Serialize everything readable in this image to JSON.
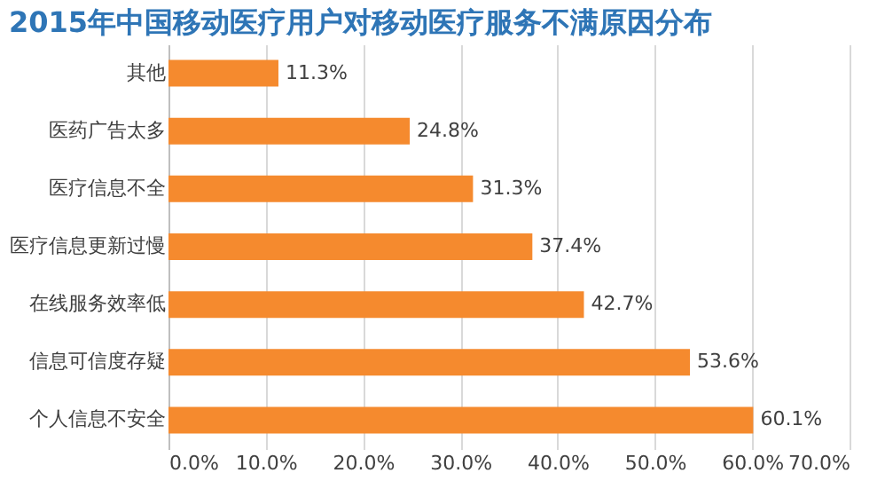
{
  "chart_data": {
    "type": "bar",
    "orientation": "horizontal",
    "title": "2015年中国移动医疗用户对移动医疗服务不满原因分布",
    "categories": [
      "其他",
      "医药广告太多",
      "医疗信息不全",
      "医疗信息更新过慢",
      "在线服务效率低",
      "信息可信度存疑",
      "个人信息不安全"
    ],
    "values": [
      11.3,
      24.8,
      31.3,
      37.4,
      42.7,
      53.6,
      60.1
    ],
    "value_labels": [
      "11.3%",
      "24.8%",
      "31.3%",
      "37.4%",
      "42.7%",
      "53.6%",
      "60.1%"
    ],
    "color": "#f58a2e",
    "xlim": [
      0,
      70
    ],
    "xticks": [
      {
        "value": 0,
        "label": "0.0%"
      },
      {
        "value": 10,
        "label": "10.0%"
      },
      {
        "value": 20,
        "label": "20.0%"
      },
      {
        "value": 30,
        "label": "30.0%"
      },
      {
        "value": 40,
        "label": "40.0%"
      },
      {
        "value": 50,
        "label": "50.0%"
      },
      {
        "value": 60,
        "label": "60.0%"
      },
      {
        "value": 70,
        "label": "70.0%"
      }
    ],
    "grid": "x"
  }
}
